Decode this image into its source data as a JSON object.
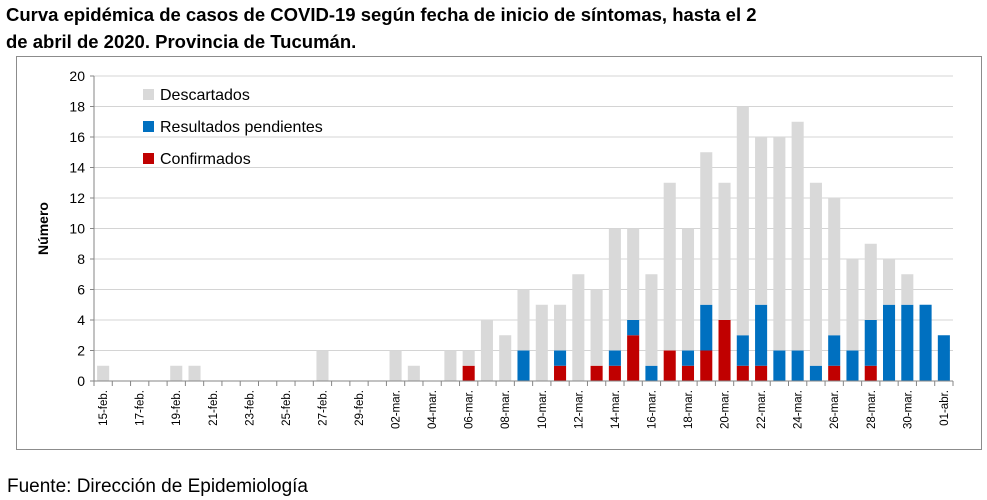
{
  "title_line1": "Curva epidémica de casos de COVID-19 según fecha de inicio de síntomas, hasta el 2",
  "title_line2": "de abril de 2020. Provincia de Tucumán.",
  "source": "Fuente: Dirección de Epidemiología",
  "chart_data": {
    "type": "bar",
    "stacked": true,
    "ylabel": "Número",
    "ylim": [
      0,
      20
    ],
    "yticks": [
      0,
      2,
      4,
      6,
      8,
      10,
      12,
      14,
      16,
      18,
      20
    ],
    "grid": true,
    "legend_position": "top-left",
    "x_tick_labels": [
      "15-feb.",
      "17-feb.",
      "19-feb.",
      "21-feb.",
      "23-feb.",
      "25-feb.",
      "27-feb.",
      "29-feb.",
      "02-mar.",
      "04-mar.",
      "06-mar.",
      "08-mar.",
      "10-mar.",
      "12-mar.",
      "14-mar.",
      "16-mar.",
      "18-mar.",
      "20-mar.",
      "22-mar.",
      "24-mar.",
      "26-mar.",
      "28-mar.",
      "30-mar.",
      "01-abr."
    ],
    "categories": [
      "15-feb.",
      "16-feb.",
      "17-feb.",
      "18-feb.",
      "19-feb.",
      "20-feb.",
      "21-feb.",
      "22-feb.",
      "23-feb.",
      "24-feb.",
      "25-feb.",
      "26-feb.",
      "27-feb.",
      "28-feb.",
      "29-feb.",
      "01-mar.",
      "02-mar.",
      "03-mar.",
      "04-mar.",
      "05-mar.",
      "06-mar.",
      "07-mar.",
      "08-mar.",
      "09-mar.",
      "10-mar.",
      "11-mar.",
      "12-mar.",
      "13-mar.",
      "14-mar.",
      "15-mar.",
      "16-mar.",
      "17-mar.",
      "18-mar.",
      "19-mar.",
      "20-mar.",
      "21-mar.",
      "22-mar.",
      "23-mar.",
      "24-mar.",
      "25-mar.",
      "26-mar.",
      "27-mar.",
      "28-mar.",
      "29-mar.",
      "30-mar.",
      "31-mar.",
      "01-abr."
    ],
    "series": [
      {
        "name": "Confirmados",
        "color": "#c00000",
        "values": [
          0,
          0,
          0,
          0,
          0,
          0,
          0,
          0,
          0,
          0,
          0,
          0,
          0,
          0,
          0,
          0,
          0,
          0,
          0,
          0,
          1,
          0,
          0,
          0,
          0,
          1,
          0,
          1,
          1,
          3,
          0,
          2,
          1,
          2,
          4,
          1,
          1,
          0,
          0,
          0,
          1,
          0,
          1,
          0,
          0,
          0,
          0
        ]
      },
      {
        "name": "Resultados pendientes",
        "color": "#0070c0",
        "values": [
          0,
          0,
          0,
          0,
          0,
          0,
          0,
          0,
          0,
          0,
          0,
          0,
          0,
          0,
          0,
          0,
          0,
          0,
          0,
          0,
          0,
          0,
          0,
          2,
          0,
          1,
          0,
          0,
          1,
          1,
          1,
          0,
          1,
          3,
          0,
          2,
          4,
          2,
          2,
          1,
          2,
          2,
          3,
          5,
          5,
          5,
          3
        ]
      },
      {
        "name": "Descartados",
        "color": "#d9d9d9",
        "values": [
          1,
          0,
          0,
          0,
          1,
          1,
          0,
          0,
          0,
          0,
          0,
          0,
          2,
          0,
          0,
          0,
          2,
          1,
          0,
          2,
          1,
          4,
          3,
          4,
          5,
          3,
          7,
          5,
          8,
          6,
          6,
          11,
          8,
          10,
          9,
          15,
          11,
          14,
          15,
          12,
          9,
          6,
          5,
          3,
          2,
          0,
          0
        ]
      }
    ]
  }
}
